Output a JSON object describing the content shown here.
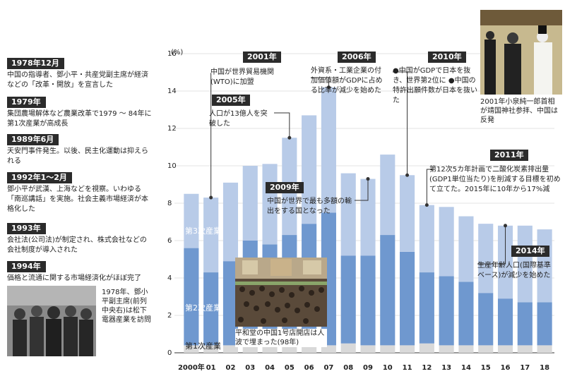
{
  "timeline": [
    {
      "tag": "1978年12月",
      "text": "中国の指導者、鄧小平・共産党副主席が経済などの「改革・開放」を宣言した"
    },
    {
      "tag": "1979年",
      "text": "集団農場解体など農業改革で1979 ～ 84年に第1次産業が高成長"
    },
    {
      "tag": "1989年6月",
      "text": "天安門事件発生。以後、民主化運動は抑えられる"
    },
    {
      "tag": "1992年1～2月",
      "text": "鄧小平が武漢、上海などを視察。いわゆる「南巡講話」を実施。社会主義市場経済が本格化した"
    },
    {
      "tag": "1993年",
      "text": "会社法(公司法)が制定され、株式会社などの会社制度が導入された"
    },
    {
      "tag": "1994年",
      "text": "価格と流通に関する市場経済化がほぼ完了"
    }
  ],
  "photo_captions": {
    "deng": "1978年、鄧小平副主席(前列中央右)は松下電器産業を訪問",
    "koizumi": "2001年小泉純一郎首相が靖国神社参拝、中国は反発",
    "store": "平和堂の中国1号店開店は人波で埋まった(98年)"
  },
  "callouts": [
    {
      "tag": "2001年",
      "text": "中国が世界貿易機関(WTO)に加盟"
    },
    {
      "tag": "2005年",
      "text": "人口が13億人を突破した"
    },
    {
      "tag": "2006年",
      "text": "外資系・工業企業の付加価値額がGDPに占める比率が減少を始めた"
    },
    {
      "tag": "2009年",
      "text": "中国が世界で最も多額の輸出をする国となった"
    },
    {
      "tag": "2010年",
      "text": "●中国がGDPで日本を抜き、世界第2位に ●中国の特許出願件数が日本を抜いた"
    },
    {
      "tag": "2011年",
      "text": "第12次5カ年計画で二酸化炭素排出量(GDP1単位当たり)を削減する目標を初めて立てた。2015年に10年から17%減"
    },
    {
      "tag": "2014年",
      "text": "生産年齢人口(国際基準ベース)が減少を始めた"
    }
  ],
  "colors": {
    "tertiary": "#b8cbe8",
    "secondary": "#6f98cf",
    "primary": "#d9d9d9",
    "tag_bg": "#2b2b2b",
    "line": "#333333"
  },
  "chart_data": {
    "type": "bar",
    "stacked": true,
    "unit": "(%)",
    "categories": [
      "2000年",
      "01",
      "02",
      "03",
      "04",
      "05",
      "06",
      "07",
      "08",
      "09",
      "10",
      "11",
      "12",
      "13",
      "14",
      "15",
      "16",
      "17",
      "18"
    ],
    "series": [
      {
        "name": "第1次産業",
        "values": [
          0.4,
          0.4,
          0.4,
          0.4,
          0.5,
          0.5,
          0.5,
          0.4,
          0.5,
          0.4,
          0.4,
          0.4,
          0.5,
          0.4,
          0.4,
          0.4,
          0.4,
          0.4,
          0.4
        ]
      },
      {
        "name": "第2次産業",
        "values": [
          5.2,
          3.9,
          4.5,
          5.6,
          5.3,
          5.8,
          6.4,
          7.1,
          4.7,
          4.8,
          5.9,
          5.0,
          3.8,
          3.7,
          3.4,
          2.8,
          2.5,
          2.3,
          2.3
        ]
      },
      {
        "name": "第3次産業",
        "values": [
          2.9,
          4.0,
          4.2,
          4.0,
          4.3,
          5.2,
          5.8,
          6.7,
          4.4,
          4.1,
          4.3,
          4.1,
          3.6,
          3.7,
          3.5,
          3.7,
          3.9,
          4.1,
          3.9
        ]
      }
    ],
    "series_labels": [
      "第3次産業",
      "第2次産業",
      "第1次産業"
    ],
    "ylim": [
      0,
      16
    ],
    "yticks": [
      0,
      2,
      4,
      6,
      8,
      10,
      12,
      14,
      16
    ]
  }
}
